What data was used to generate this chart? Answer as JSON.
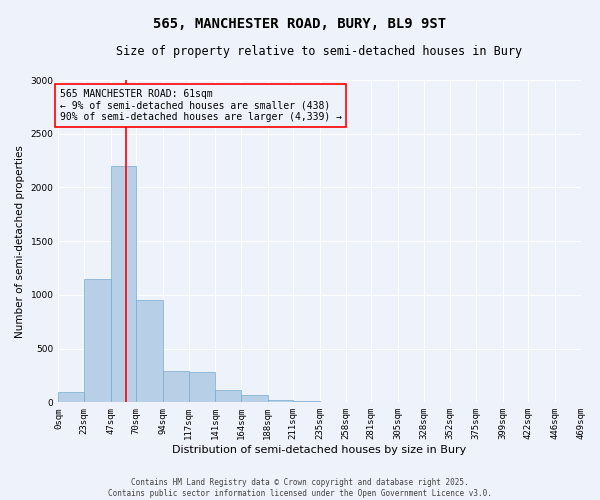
{
  "title": "565, MANCHESTER ROAD, BURY, BL9 9ST",
  "subtitle": "Size of property relative to semi-detached houses in Bury",
  "xlabel": "Distribution of semi-detached houses by size in Bury",
  "ylabel": "Number of semi-detached properties",
  "footer_line1": "Contains HM Land Registry data © Crown copyright and database right 2025.",
  "footer_line2": "Contains public sector information licensed under the Open Government Licence v3.0.",
  "annotation_title": "565 MANCHESTER ROAD: 61sqm",
  "annotation_line1": "← 9% of semi-detached houses are smaller (438)",
  "annotation_line2": "90% of semi-detached houses are larger (4,339) →",
  "bar_color": "#b8cfe8",
  "bar_edge_color": "#7aaacf",
  "red_line_x": 61,
  "bin_edges": [
    0,
    23,
    47,
    70,
    94,
    117,
    141,
    164,
    188,
    211,
    235,
    258,
    281,
    305,
    328,
    352,
    375,
    399,
    422,
    446,
    469
  ],
  "bin_labels": [
    "0sqm",
    "23sqm",
    "47sqm",
    "70sqm",
    "94sqm",
    "117sqm",
    "141sqm",
    "164sqm",
    "188sqm",
    "211sqm",
    "235sqm",
    "258sqm",
    "281sqm",
    "305sqm",
    "328sqm",
    "352sqm",
    "375sqm",
    "399sqm",
    "422sqm",
    "446sqm",
    "469sqm"
  ],
  "bar_heights": [
    100,
    1150,
    2200,
    950,
    290,
    285,
    115,
    65,
    25,
    8,
    4,
    2,
    1,
    0,
    0,
    0,
    0,
    0,
    0,
    0
  ],
  "ylim": [
    0,
    3000
  ],
  "yticks": [
    0,
    500,
    1000,
    1500,
    2000,
    2500,
    3000
  ],
  "background_color": "#eef2fa",
  "grid_color": "#ffffff",
  "title_fontsize": 10,
  "subtitle_fontsize": 8.5,
  "xlabel_fontsize": 8,
  "ylabel_fontsize": 7.5,
  "tick_fontsize": 6.5,
  "annotation_fontsize": 7,
  "footer_fontsize": 5.5
}
